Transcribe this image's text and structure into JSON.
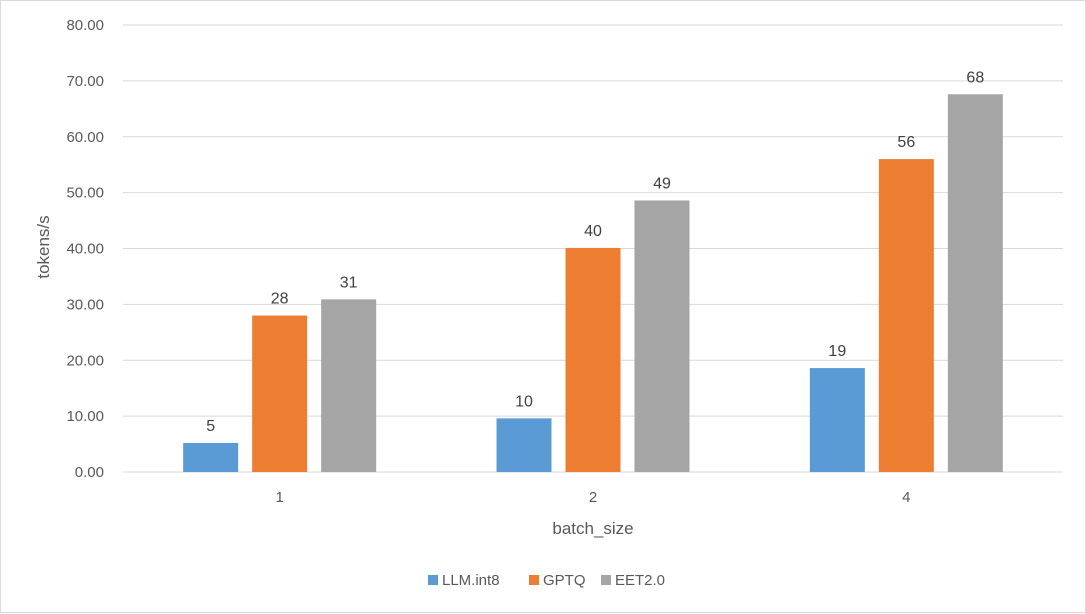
{
  "chart_data": {
    "type": "bar",
    "title": "",
    "xlabel": "batch_size",
    "ylabel": "tokens/s",
    "categories": [
      "1",
      "2",
      "4"
    ],
    "ylim": [
      0,
      80
    ],
    "yticks": [
      "0.00",
      "10.00",
      "20.00",
      "30.00",
      "40.00",
      "50.00",
      "60.00",
      "70.00",
      "80.00"
    ],
    "grid": true,
    "legend_position": "bottom",
    "series": [
      {
        "name": "LLM.int8",
        "color": "#5b9bd5",
        "values": [
          5.2,
          9.6,
          18.6
        ],
        "labels": [
          "5",
          "10",
          "19"
        ]
      },
      {
        "name": "GPTQ",
        "color": "#ed7d31",
        "values": [
          28.0,
          40.1,
          56.0
        ],
        "labels": [
          "28",
          "40",
          "56"
        ]
      },
      {
        "name": "EET2.0",
        "color": "#a5a5a5",
        "values": [
          30.9,
          48.6,
          67.6
        ],
        "labels": [
          "31",
          "49",
          "68"
        ]
      }
    ]
  }
}
